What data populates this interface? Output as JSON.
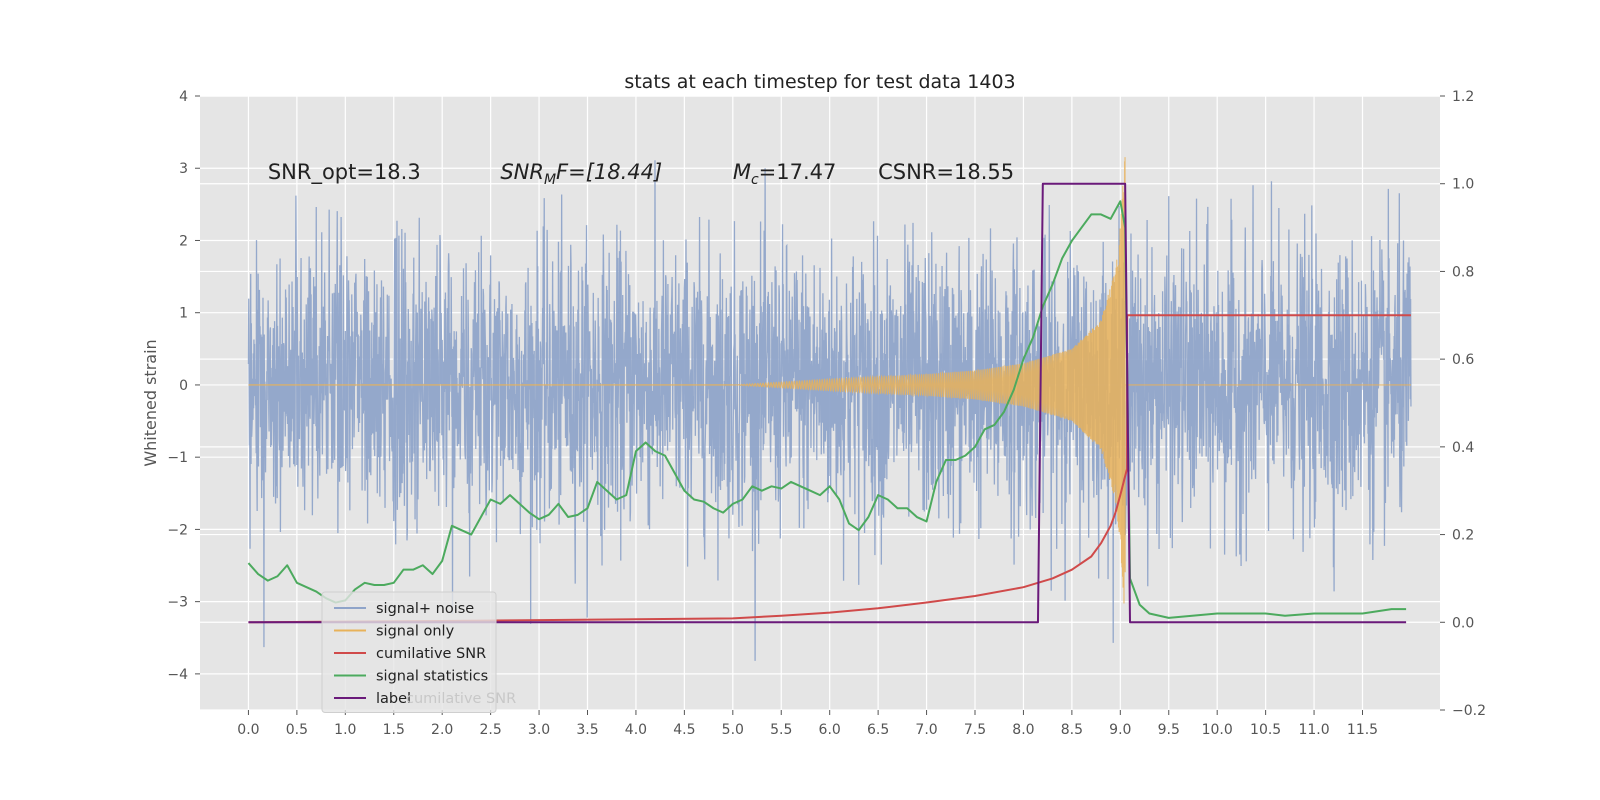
{
  "chart_data": {
    "type": "line",
    "title": "stats at each timestep for test data 1403",
    "ylabel": "Whitened strain",
    "xlabel": "",
    "xlim": [
      -0.5,
      12.3
    ],
    "ylim": [
      -4.5,
      4
    ],
    "y2lim": [
      -0.2,
      1.2
    ],
    "x_ticks": [
      "0.0",
      "0.5",
      "1.0",
      "1.5",
      "2.0",
      "2.5",
      "3.0",
      "3.5",
      "4.0",
      "4.5",
      "5.0",
      "5.5",
      "6.0",
      "6.5",
      "7.0",
      "7.5",
      "8.0",
      "8.5",
      "9.0",
      "9.5",
      "10.0",
      "10.5",
      "11.0",
      "11.5"
    ],
    "y_ticks": [
      "4",
      "3",
      "2",
      "1",
      "0",
      "−1",
      "−2",
      "−3",
      "−4"
    ],
    "y2_ticks": [
      "1.2",
      "1.0",
      "0.8",
      "0.6",
      "0.4",
      "0.2",
      "0.0",
      "−0.2"
    ],
    "grid": true,
    "legend_position": "lower-left",
    "annotations": [
      {
        "text": "SNR_opt=18.3",
        "x": 0.2,
        "y": 2.85
      },
      {
        "text": "SNR_MF=[18.44]",
        "main": "SNR",
        "sub": "M",
        "rest": "F=[18.44]",
        "x": 2.6,
        "y": 2.85
      },
      {
        "text": "M_c=17.47",
        "main": "M",
        "sub": "c",
        "rest": "=17.47",
        "x": 5.0,
        "y": 2.85
      },
      {
        "text": "CSNR=18.55",
        "x": 6.5,
        "y": 2.85
      }
    ],
    "legend_ghost_text": "cumilative SNR",
    "series": [
      {
        "name": "signal+ noise",
        "axis": "left",
        "style": "noise",
        "color": "#8fa4c9",
        "x_range": [
          0.0,
          12.0
        ],
        "envelope_typical": [
          -1.8,
          1.8
        ],
        "envelope_extreme": [
          -4.1,
          3.6
        ]
      },
      {
        "name": "signal only",
        "axis": "left",
        "style": "chirp",
        "color": "#e8b25a",
        "x_range": [
          5.0,
          9.05
        ],
        "amplitude_points": [
          [
            5.0,
            0.0
          ],
          [
            6.0,
            0.08
          ],
          [
            7.0,
            0.15
          ],
          [
            7.5,
            0.2
          ],
          [
            8.0,
            0.3
          ],
          [
            8.5,
            0.5
          ],
          [
            8.8,
            0.9
          ],
          [
            8.95,
            1.6
          ],
          [
            9.0,
            2.2
          ],
          [
            9.05,
            3.3
          ]
        ],
        "tail_x": [
          9.05,
          12.0
        ],
        "tail_y": 0.0
      },
      {
        "name": "cumilative SNR",
        "axis": "right",
        "color": "#d04a4a",
        "x": [
          0.0,
          1.0,
          2.0,
          3.0,
          4.0,
          5.0,
          5.5,
          6.0,
          6.5,
          7.0,
          7.5,
          8.0,
          8.3,
          8.5,
          8.7,
          8.8,
          8.9,
          8.95,
          9.0,
          9.04,
          9.07,
          9.07,
          12.0
        ],
        "y": [
          0.0,
          0.0015,
          0.003,
          0.005,
          0.007,
          0.009,
          0.015,
          0.022,
          0.032,
          0.045,
          0.06,
          0.08,
          0.1,
          0.12,
          0.15,
          0.18,
          0.22,
          0.25,
          0.29,
          0.325,
          0.35,
          0.7,
          0.7
        ]
      },
      {
        "name": "signal statistics",
        "axis": "right",
        "color": "#4caa5e",
        "x": [
          0.0,
          0.1,
          0.2,
          0.3,
          0.4,
          0.5,
          0.6,
          0.7,
          0.8,
          0.9,
          1.0,
          1.1,
          1.2,
          1.3,
          1.4,
          1.5,
          1.6,
          1.7,
          1.8,
          1.9,
          2.0,
          2.1,
          2.2,
          2.3,
          2.4,
          2.5,
          2.6,
          2.7,
          2.8,
          2.9,
          3.0,
          3.1,
          3.2,
          3.3,
          3.4,
          3.5,
          3.6,
          3.7,
          3.8,
          3.9,
          4.0,
          4.1,
          4.2,
          4.3,
          4.4,
          4.5,
          4.6,
          4.7,
          4.8,
          4.9,
          5.0,
          5.1,
          5.2,
          5.3,
          5.4,
          5.5,
          5.6,
          5.7,
          5.8,
          5.9,
          6.0,
          6.1,
          6.2,
          6.3,
          6.4,
          6.5,
          6.6,
          6.7,
          6.8,
          6.9,
          7.0,
          7.1,
          7.2,
          7.3,
          7.4,
          7.5,
          7.6,
          7.7,
          7.8,
          7.9,
          8.0,
          8.1,
          8.2,
          8.3,
          8.4,
          8.5,
          8.6,
          8.7,
          8.8,
          8.9,
          9.0,
          9.05,
          9.1,
          9.2,
          9.3,
          9.5,
          10.0,
          10.5,
          10.7,
          11.0,
          11.5,
          11.8,
          11.95
        ],
        "y": [
          0.135,
          0.11,
          0.095,
          0.105,
          0.13,
          0.09,
          0.08,
          0.07,
          0.055,
          0.045,
          0.05,
          0.075,
          0.09,
          0.085,
          0.085,
          0.09,
          0.12,
          0.12,
          0.13,
          0.11,
          0.14,
          0.22,
          0.21,
          0.2,
          0.24,
          0.28,
          0.27,
          0.29,
          0.27,
          0.25,
          0.235,
          0.245,
          0.27,
          0.24,
          0.245,
          0.26,
          0.32,
          0.3,
          0.28,
          0.29,
          0.39,
          0.41,
          0.39,
          0.38,
          0.34,
          0.3,
          0.28,
          0.275,
          0.26,
          0.25,
          0.27,
          0.28,
          0.31,
          0.3,
          0.31,
          0.305,
          0.32,
          0.31,
          0.3,
          0.29,
          0.31,
          0.28,
          0.225,
          0.21,
          0.24,
          0.29,
          0.28,
          0.26,
          0.26,
          0.24,
          0.23,
          0.32,
          0.37,
          0.37,
          0.38,
          0.4,
          0.44,
          0.45,
          0.48,
          0.53,
          0.6,
          0.65,
          0.72,
          0.77,
          0.83,
          0.87,
          0.9,
          0.93,
          0.93,
          0.92,
          0.96,
          0.9,
          0.1,
          0.04,
          0.02,
          0.01,
          0.02,
          0.02,
          0.015,
          0.02,
          0.02,
          0.03,
          0.03
        ]
      },
      {
        "name": "label",
        "axis": "right",
        "color": "#6a1a7a",
        "x": [
          0.0,
          8.15,
          8.2,
          9.05,
          9.1,
          11.95
        ],
        "y": [
          0.0,
          0.0,
          1.0,
          1.0,
          0.0,
          0.0
        ]
      }
    ]
  }
}
